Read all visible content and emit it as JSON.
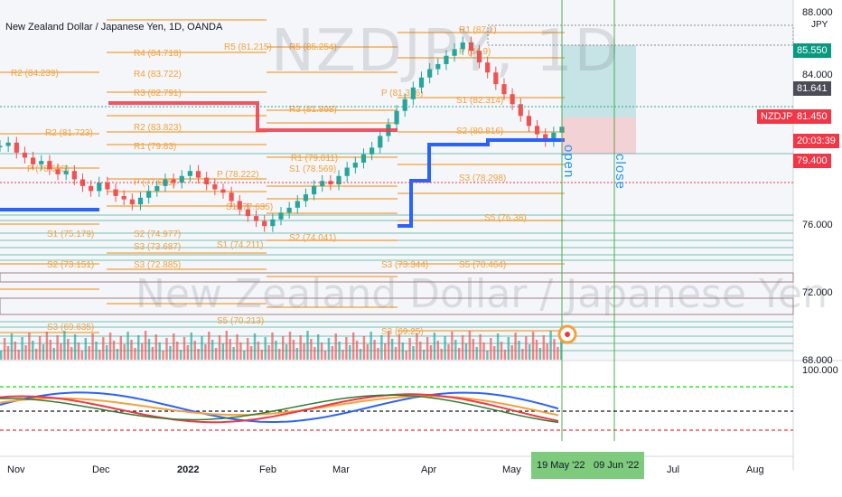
{
  "header": {
    "title": "New Zealand Dollar / Japanese Yen, 1D, OANDA"
  },
  "watermark": {
    "symbol": "NZDJPY, 1D",
    "name": "New Zealand Dollar / Japanese Yen"
  },
  "annotations": {
    "open_label": "open",
    "close_label": "close",
    "currency_label": "JPY"
  },
  "price_axis": {
    "ticks": [
      "88.000",
      "84.000",
      "76.000",
      "72.000",
      "68.000",
      "100.000"
    ]
  },
  "price_tags": [
    {
      "label": "85.550",
      "bg": "#089981"
    },
    {
      "label": "81.641",
      "bg": "#4a4d57"
    },
    {
      "label": "NZDJPY",
      "bg": "#f23645"
    },
    {
      "label": "81.450",
      "bg": "#f23645"
    },
    {
      "label": "20:03:39",
      "bg": "#f23645"
    },
    {
      "label": "79.400",
      "bg": "#f23645"
    }
  ],
  "time_axis": {
    "ticks": [
      "Nov",
      "Dec",
      "2022",
      "Feb",
      "Mar",
      "Apr",
      "May",
      "Jul",
      "Aug"
    ],
    "highlight_dates": [
      "19 May '22",
      "09 Jun '22"
    ]
  },
  "colors": {
    "pivot": "#f5a13a",
    "up": "#26a69a",
    "down": "#ef5350",
    "trend_blue": "#2962ff",
    "trend_red": "#f23645",
    "highlight_green": "#7ecb7e"
  },
  "pivot_labels": [
    "R2 (84.239)",
    "R4 (84.718)",
    "R5 (85.254)",
    "R3 (82.791)",
    "R4 (83.722)",
    "R5 (81.215)",
    "R2 (81.723)",
    "R2 (83.823)",
    "R1 (79.83)",
    "R3 (81.898)",
    "R1 (79.011)",
    "P (78.695)",
    "P (77.695)",
    "P (78.222)",
    "S1 (78.569)",
    "S1 (77.635)",
    "S1 (82.314)",
    "S2 (80.816)",
    "P (84.9)",
    "R1 (87.1)",
    "S3 (78.298)",
    "S1 (75.179)",
    "S2 (74.977)",
    "S1 (74.211)",
    "S2 (74.041)",
    "S2 (73.151)",
    "S3 (73.687)",
    "S3 (72.885)",
    "S3 (69.635)",
    "S5 (70.213)",
    "S3 (69.25)",
    "S5 (76.38)",
    "S5 (70.464)",
    "P (81.316)",
    "S3 (73.344)"
  ],
  "chart_data": {
    "type": "candlestick",
    "title": "New Zealand Dollar / Japanese Yen, 1D, OANDA",
    "ylim": [
      67.5,
      88.5
    ],
    "x_ticks": [
      "Nov",
      "Dec",
      "2022",
      "Feb",
      "Mar",
      "Apr",
      "May",
      "Jul",
      "Aug"
    ],
    "y_ticks": [
      68,
      72,
      76,
      80,
      84,
      88
    ],
    "series": [
      {
        "name": "close",
        "values": [
          80.3,
          80.5,
          79.9,
          79.6,
          79.2,
          79.4,
          78.9,
          78.6,
          78.8,
          78.3,
          77.9,
          77.6,
          78.1,
          77.7,
          77.3,
          77.1,
          76.8,
          77.2,
          77.6,
          77.9,
          78.3,
          78.1,
          78.5,
          78.8,
          78.4,
          78.0,
          77.7,
          77.5,
          77.0,
          76.5,
          76.1,
          75.8,
          75.5,
          75.9,
          76.3,
          76.6,
          77.0,
          77.4,
          77.9,
          78.2,
          78.0,
          78.5,
          79.0,
          79.3,
          79.8,
          80.2,
          80.9,
          81.6,
          82.4,
          83.1,
          83.8,
          84.4,
          84.9,
          85.2,
          85.7,
          86.1,
          86.5,
          86.0,
          85.3,
          84.7,
          84.0,
          83.4,
          82.8,
          82.1,
          81.5,
          81.0,
          80.6,
          81.1,
          81.45
        ]
      }
    ],
    "markers": [
      {
        "label": "19 May '22",
        "meaning": "open"
      },
      {
        "label": "09 Jun '22",
        "meaning": "close"
      }
    ]
  }
}
